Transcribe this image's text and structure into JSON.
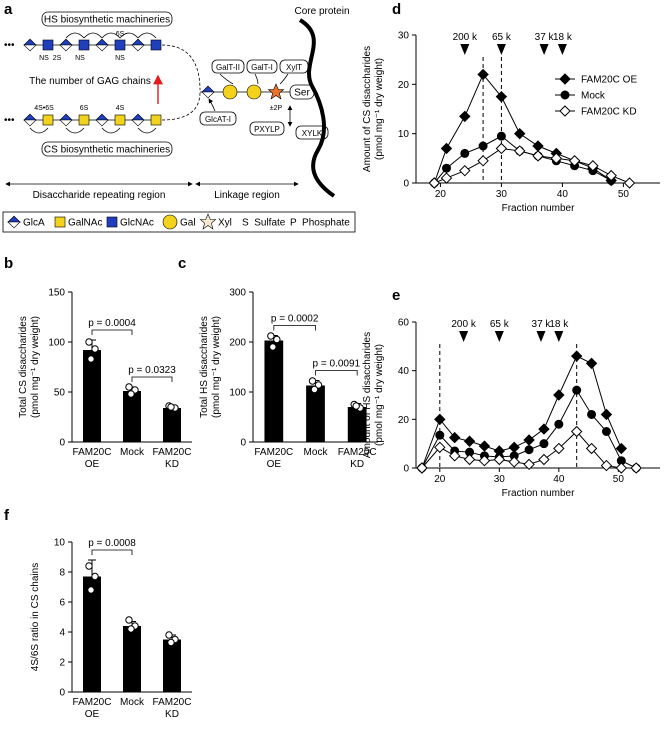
{
  "panel_labels": [
    "a",
    "b",
    "c",
    "d",
    "e",
    "f"
  ],
  "diagram": {
    "hs_label": "HS biosynthetic machineries",
    "cs_label": "CS biosynthetic machineries",
    "gag_chains": "The number of GAG chains",
    "hs_sulfation": [
      "NS",
      "2S",
      "NS",
      "6S",
      "NS"
    ],
    "cs_sulfation": [
      "4S•6S",
      "6S",
      "4S"
    ],
    "enzymes": [
      "GalT-II",
      "GalT-I",
      "XylT",
      "GlcAT-I",
      "PXYLP",
      "XYLK"
    ],
    "ser": "Ser",
    "phosphate": "±2P",
    "core_protein": "Core protein",
    "regions": [
      "Disaccharide repeating region",
      "Linkage region"
    ],
    "legend": [
      "GlcA",
      "GalNAc",
      "GlcNAc",
      "Gal",
      "Xyl",
      "S  Sulfate",
      "P  Phosphate"
    ]
  },
  "chart_data": [
    {
      "type": "bar",
      "categories": [
        "FAM20C OE",
        "Mock",
        "FAM20C KD"
      ],
      "values": [
        92,
        51,
        34
      ],
      "errors": [
        10,
        4,
        2
      ],
      "points": [
        [
          100,
          93,
          83
        ],
        [
          55,
          52,
          48
        ],
        [
          36,
          34,
          35
        ]
      ],
      "color": "#000000",
      "ylim": [
        0,
        150
      ],
      "yticks": [
        0,
        50,
        100,
        150
      ],
      "ylabel": [
        "Total CS disaccharides",
        "(pmol mg⁻¹ dry weight)"
      ],
      "annotations": [
        "p = 0.0004",
        "p = 0.0323"
      ]
    },
    {
      "type": "bar",
      "categories": [
        "FAM20C OE",
        "Mock",
        "FAM20C KD"
      ],
      "values": [
        203,
        113,
        70
      ],
      "errors": [
        10,
        10,
        7
      ],
      "points": [
        [
          212,
          205,
          190
        ],
        [
          122,
          114,
          105
        ],
        [
          75,
          68,
          72
        ]
      ],
      "color": "#000000",
      "ylim": [
        0,
        300
      ],
      "yticks": [
        0,
        100,
        200,
        300
      ],
      "ylabel": [
        "Total HS disaccharides",
        "(pmol mg⁻¹ dry weight)"
      ],
      "annotations": [
        "p = 0.0002",
        "p = 0.0091"
      ]
    },
    {
      "type": "line",
      "xlabel": "Fraction number",
      "ylabel": [
        "Amount of CS disaccharides",
        "(pmol mg⁻¹ dry weight)"
      ],
      "xlim": [
        16,
        56
      ],
      "xticks": [
        20,
        30,
        40,
        50
      ],
      "ylim": [
        0,
        30
      ],
      "yticks": [
        0,
        10,
        20,
        30
      ],
      "legend": "upper right",
      "size_markers": [
        {
          "label": "200 k",
          "x": 24
        },
        {
          "label": "65 k",
          "x": 30
        },
        {
          "label": "37 k",
          "x": 37
        },
        {
          "label": "18 k",
          "x": 40
        }
      ],
      "reference_lines": [
        27,
        30
      ],
      "series": [
        {
          "name": "FAM20C OE",
          "marker": "diamond",
          "color": "#000000",
          "fill": "#000000",
          "x": [
            19,
            21,
            24,
            27,
            30,
            33,
            36,
            39,
            42,
            45,
            48
          ],
          "values": [
            0,
            7,
            13.5,
            22,
            17.5,
            10,
            7.5,
            6,
            4.5,
            3,
            0.5
          ]
        },
        {
          "name": "Mock",
          "marker": "circle",
          "color": "#000000",
          "fill": "#000000",
          "x": [
            19,
            21,
            24,
            27,
            30,
            33,
            36,
            39,
            42,
            45,
            48
          ],
          "values": [
            0,
            3,
            6,
            7.5,
            9.5,
            6.5,
            5.5,
            4.5,
            3.5,
            2.5,
            0.5
          ]
        },
        {
          "name": "FAM20C KD",
          "marker": "diamond",
          "color": "#000000",
          "fill": "#ffffff",
          "x": [
            19,
            21,
            24,
            27,
            30,
            33,
            36,
            39,
            42,
            45,
            48,
            51
          ],
          "values": [
            0,
            1,
            2.5,
            4.5,
            7,
            6.5,
            5.5,
            5,
            4.5,
            3.5,
            1.5,
            0
          ]
        }
      ]
    },
    {
      "type": "line",
      "xlabel": "Fraction number",
      "ylabel": [
        "Amount of HS disaccharides",
        "(pmol mg⁻¹ dry weight)"
      ],
      "xlim": [
        16,
        57
      ],
      "xticks": [
        20,
        30,
        40,
        50
      ],
      "ylim": [
        0,
        60
      ],
      "yticks": [
        0,
        20,
        40,
        60
      ],
      "size_markers": [
        {
          "label": "200 k",
          "x": 24
        },
        {
          "label": "65 k",
          "x": 30
        },
        {
          "label": "37 k",
          "x": 37
        },
        {
          "label": "18 k",
          "x": 40
        }
      ],
      "reference_lines": [
        20,
        43
      ],
      "series": [
        {
          "name": "FAM20C OE",
          "marker": "diamond",
          "color": "#000000",
          "fill": "#000000",
          "x": [
            17,
            20,
            22.5,
            25,
            27.5,
            30,
            32.5,
            35,
            37.5,
            40,
            43,
            45.5,
            48,
            50.5
          ],
          "values": [
            0,
            20,
            12.5,
            11,
            9,
            7,
            8.5,
            11.5,
            16,
            30,
            46,
            43,
            22,
            8
          ]
        },
        {
          "name": "Mock",
          "marker": "circle",
          "color": "#000000",
          "fill": "#000000",
          "x": [
            17,
            20,
            22.5,
            25,
            27.5,
            30,
            32.5,
            35,
            37.5,
            40,
            43,
            45.5,
            48,
            50.5,
            53
          ],
          "values": [
            0,
            13.5,
            7,
            6.5,
            5,
            4.5,
            5,
            7.5,
            10,
            18,
            32,
            22,
            15,
            3,
            0
          ]
        },
        {
          "name": "FAM20C KD",
          "marker": "diamond",
          "color": "#000000",
          "fill": "#ffffff",
          "x": [
            17,
            20,
            22.5,
            25,
            27.5,
            30,
            32.5,
            35,
            37.5,
            40,
            43,
            45.5,
            48,
            50.5,
            53
          ],
          "values": [
            0,
            8.5,
            5,
            3.5,
            3,
            3.5,
            2.5,
            1.5,
            3.5,
            8,
            15,
            8,
            1,
            0,
            0
          ]
        }
      ]
    },
    {
      "type": "bar",
      "categories": [
        "FAM20C OE",
        "Mock",
        "FAM20C KD"
      ],
      "values": [
        7.7,
        4.4,
        3.5
      ],
      "errors": [
        1.1,
        0.3,
        0.3
      ],
      "points": [
        [
          8.4,
          7.7,
          6.8
        ],
        [
          4.8,
          4.4,
          4.2
        ],
        [
          3.8,
          3.5,
          3.3
        ]
      ],
      "color": "#000000",
      "ylim": [
        0,
        10
      ],
      "yticks": [
        0,
        2,
        4,
        6,
        8,
        10
      ],
      "ylabel": [
        "4S/6S ratio in CS chains"
      ],
      "annotations": [
        "p = 0.0008"
      ]
    }
  ]
}
